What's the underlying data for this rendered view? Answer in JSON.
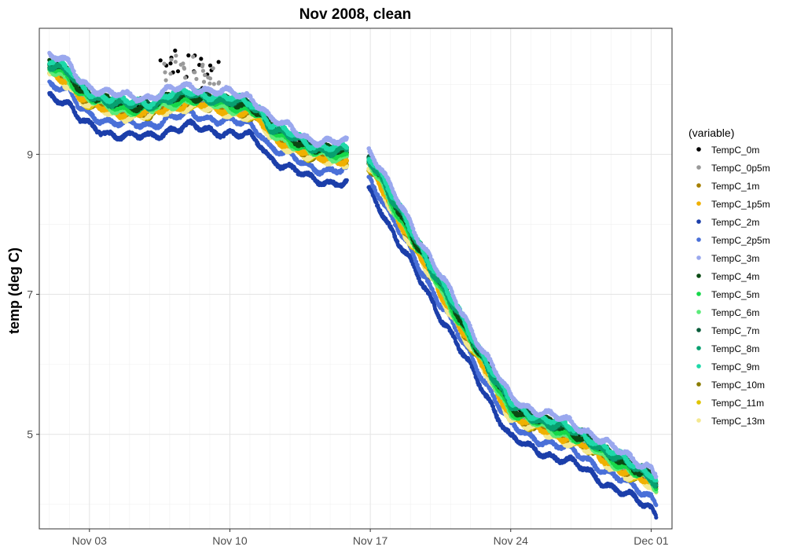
{
  "chart_data": {
    "type": "scatter",
    "title": "Nov 2008, clean",
    "xlabel": "",
    "ylabel": "temp (deg C)",
    "legend_title": "(variable)",
    "legend_position": "right",
    "grid": true,
    "x_range": [
      "2008-10-31T12:00",
      "2008-12-02T01:00"
    ],
    "ylim": [
      3.65,
      10.8
    ],
    "x_ticks": [
      {
        "date": "2008-11-03",
        "label": "Nov 03"
      },
      {
        "date": "2008-11-10",
        "label": "Nov 10"
      },
      {
        "date": "2008-11-17",
        "label": "Nov 17"
      },
      {
        "date": "2008-11-24",
        "label": "Nov 24"
      },
      {
        "date": "2008-12-01",
        "label": "Dec 01"
      }
    ],
    "y_ticks": [
      5,
      7,
      9
    ],
    "data_gap": [
      "2008-11-15T20:00",
      "2008-11-16T22:00"
    ],
    "mean_profile": [
      {
        "date": "2008-11-01T00:00",
        "temp": 10.2
      },
      {
        "date": "2008-11-01T12:00",
        "temp": 10.15
      },
      {
        "date": "2008-11-02T00:00",
        "temp": 10.05
      },
      {
        "date": "2008-11-02T12:00",
        "temp": 9.85
      },
      {
        "date": "2008-11-03T00:00",
        "temp": 9.75
      },
      {
        "date": "2008-11-04T00:00",
        "temp": 9.65
      },
      {
        "date": "2008-11-05T00:00",
        "temp": 9.6
      },
      {
        "date": "2008-11-06T00:00",
        "temp": 9.6
      },
      {
        "date": "2008-11-07T00:00",
        "temp": 9.7
      },
      {
        "date": "2008-11-08T00:00",
        "temp": 9.75
      },
      {
        "date": "2008-11-09T00:00",
        "temp": 9.7
      },
      {
        "date": "2008-11-10T00:00",
        "temp": 9.65
      },
      {
        "date": "2008-11-11T00:00",
        "temp": 9.6
      },
      {
        "date": "2008-11-11T12:00",
        "temp": 9.5
      },
      {
        "date": "2008-11-12T00:00",
        "temp": 9.3
      },
      {
        "date": "2008-11-13T00:00",
        "temp": 9.15
      },
      {
        "date": "2008-11-14T00:00",
        "temp": 9.0
      },
      {
        "date": "2008-11-15T00:00",
        "temp": 8.95
      },
      {
        "date": "2008-11-15T20:00",
        "temp": 8.95
      },
      {
        "date": "2008-11-16T22:00",
        "temp": 8.85
      },
      {
        "date": "2008-11-17T12:00",
        "temp": 8.6
      },
      {
        "date": "2008-11-18T00:00",
        "temp": 8.3
      },
      {
        "date": "2008-11-19T00:00",
        "temp": 7.8
      },
      {
        "date": "2008-11-20T00:00",
        "temp": 7.3
      },
      {
        "date": "2008-11-21T00:00",
        "temp": 6.8
      },
      {
        "date": "2008-11-22T00:00",
        "temp": 6.3
      },
      {
        "date": "2008-11-23T00:00",
        "temp": 5.8
      },
      {
        "date": "2008-11-24T00:00",
        "temp": 5.3
      },
      {
        "date": "2008-11-25T00:00",
        "temp": 5.15
      },
      {
        "date": "2008-11-26T00:00",
        "temp": 5.05
      },
      {
        "date": "2008-11-27T00:00",
        "temp": 4.95
      },
      {
        "date": "2008-11-28T00:00",
        "temp": 4.8
      },
      {
        "date": "2008-11-29T00:00",
        "temp": 4.6
      },
      {
        "date": "2008-11-30T00:00",
        "temp": 4.45
      },
      {
        "date": "2008-12-01T00:00",
        "temp": 4.3
      },
      {
        "date": "2008-12-01T06:00",
        "temp": 4.2
      }
    ],
    "series": [
      {
        "name": "TempC_0m",
        "color": "#000000",
        "offset": 0.08
      },
      {
        "name": "TempC_0p5m",
        "color": "#999999",
        "offset": 0.05
      },
      {
        "name": "TempC_1m",
        "color": "#A57F00",
        "offset": 0.0
      },
      {
        "name": "TempC_1p5m",
        "color": "#F0B000",
        "offset": -0.02
      },
      {
        "name": "TempC_2m",
        "color": "#1C3FAA",
        "offset": -0.35
      },
      {
        "name": "TempC_2p5m",
        "color": "#4A70D8",
        "offset": -0.18
      },
      {
        "name": "TempC_3m",
        "color": "#9AA8EE",
        "offset": 0.22
      },
      {
        "name": "TempC_4m",
        "color": "#0B4A14",
        "offset": 0.1
      },
      {
        "name": "TempC_5m",
        "color": "#16D84A",
        "offset": 0.05
      },
      {
        "name": "TempC_6m",
        "color": "#5CEB7A",
        "offset": 0.02
      },
      {
        "name": "TempC_7m",
        "color": "#0B5C3A",
        "offset": 0.12
      },
      {
        "name": "TempC_8m",
        "color": "#08A070",
        "offset": 0.1
      },
      {
        "name": "TempC_9m",
        "color": "#1ED9A9",
        "offset": 0.15
      },
      {
        "name": "TempC_10m",
        "color": "#8A7C00",
        "offset": -0.02
      },
      {
        "name": "TempC_11m",
        "color": "#E0C400",
        "offset": -0.04
      },
      {
        "name": "TempC_13m",
        "color": "#F4E890",
        "offset": -0.06
      }
    ]
  }
}
